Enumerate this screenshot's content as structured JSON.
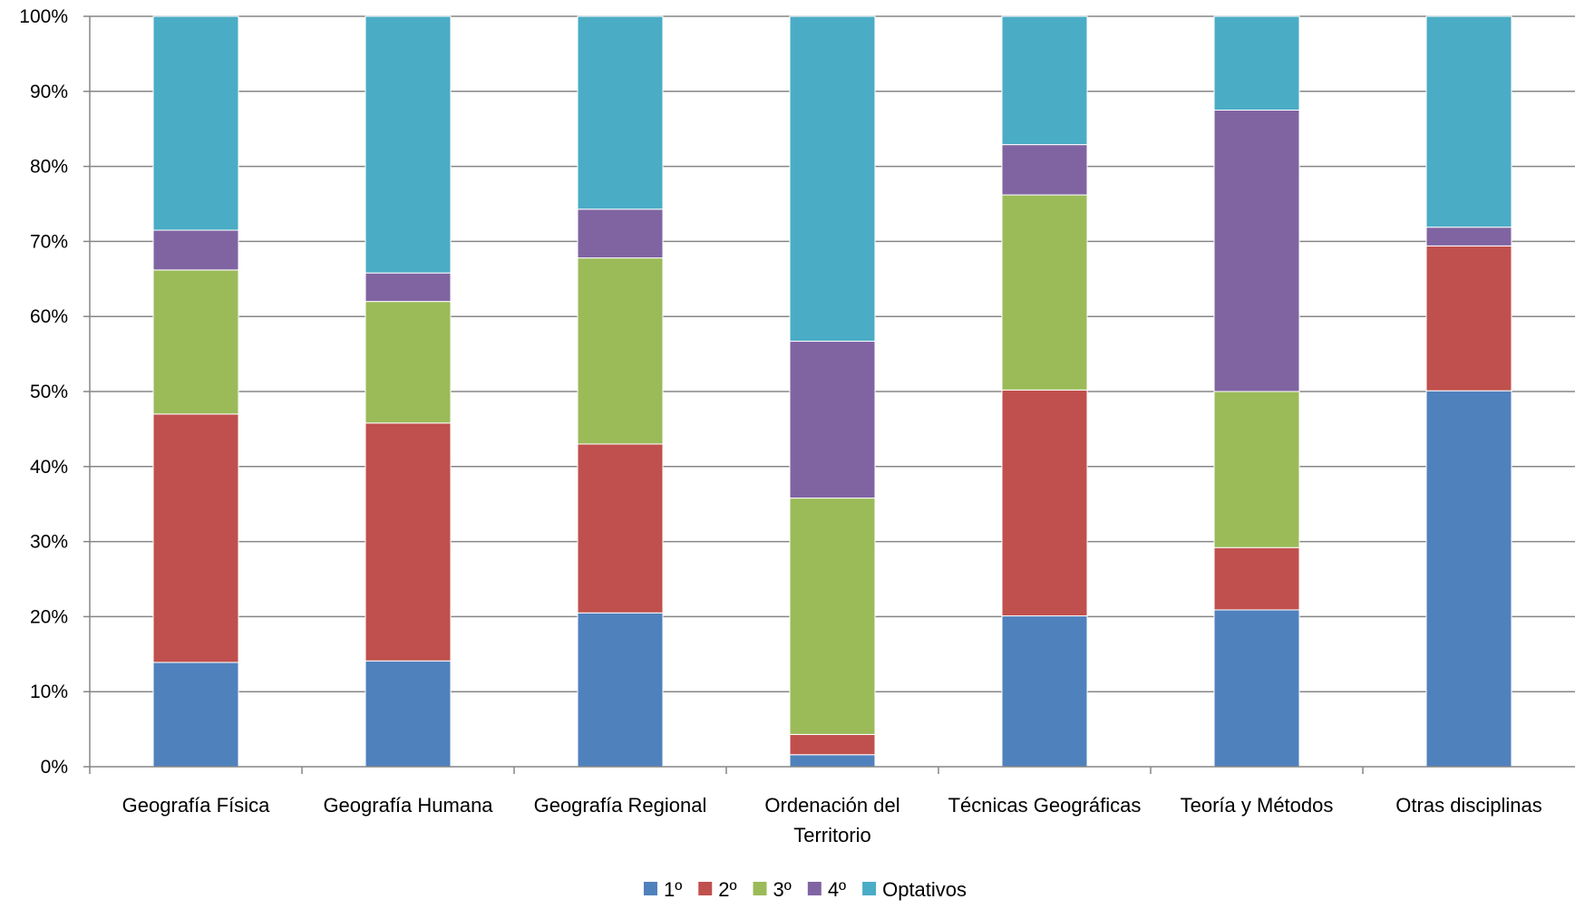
{
  "chart_data": {
    "type": "bar",
    "stacked": "percent",
    "categories": [
      [
        "Geografía Física"
      ],
      [
        "Geografía Humana"
      ],
      [
        "Geografía Regional"
      ],
      [
        "Ordenación del",
        "Territorio"
      ],
      [
        "Técnicas Geográficas"
      ],
      [
        "Teoría y Métodos"
      ],
      [
        "Otras disciplinas"
      ]
    ],
    "series": [
      {
        "name": "1º",
        "color": "#4F81BD",
        "values": [
          13.9,
          14.1,
          20.5,
          1.6,
          20.1,
          20.9,
          50.1
        ]
      },
      {
        "name": "2º",
        "color": "#C0504D",
        "values": [
          33.1,
          31.7,
          22.5,
          2.7,
          30.1,
          8.3,
          19.3
        ]
      },
      {
        "name": "3º",
        "color": "#9BBB59",
        "values": [
          19.2,
          16.2,
          24.8,
          31.5,
          26.0,
          20.8,
          0.0
        ]
      },
      {
        "name": "4º",
        "color": "#8064A2",
        "values": [
          5.3,
          3.8,
          6.5,
          20.9,
          6.7,
          37.5,
          2.5
        ]
      },
      {
        "name": "Optativos",
        "color": "#4BACC6",
        "values": [
          28.5,
          34.2,
          25.7,
          43.3,
          17.1,
          12.5,
          28.1
        ]
      }
    ],
    "yticks": [
      "0%",
      "10%",
      "20%",
      "30%",
      "40%",
      "50%",
      "60%",
      "70%",
      "80%",
      "90%",
      "100%"
    ],
    "ylim": [
      0,
      100
    ],
    "grid": true,
    "legend": "bottom",
    "title": "",
    "xlabel": "",
    "ylabel": ""
  }
}
